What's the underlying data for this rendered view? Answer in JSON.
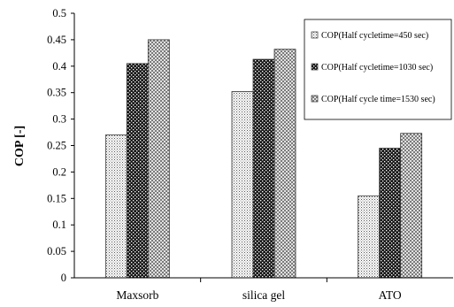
{
  "chart_data": {
    "type": "bar",
    "categories": [
      "Maxsorb",
      "silica gel",
      "ATO"
    ],
    "series": [
      {
        "name": "COP(Half cycletime=450 sec)",
        "values": [
          0.27,
          0.352,
          0.155
        ],
        "pattern": "dots"
      },
      {
        "name": "COP(Half cycletime=1030 sec)",
        "values": [
          0.405,
          0.413,
          0.245
        ],
        "pattern": "dark-check"
      },
      {
        "name": "COP(Half cycle time=1530 sec)",
        "values": [
          0.45,
          0.432,
          0.273
        ],
        "pattern": "cross-hatch"
      }
    ],
    "title": "",
    "xlabel": "",
    "ylabel": "COP [-]",
    "ylim": [
      0,
      0.5
    ],
    "yticks": [
      "0",
      "0.05",
      "0.1",
      "0.15",
      "0.2",
      "0.25",
      "0.3",
      "0.35",
      "0.4",
      "0.45",
      "0.5"
    ],
    "grid": false,
    "legend_position": "top-right"
  }
}
